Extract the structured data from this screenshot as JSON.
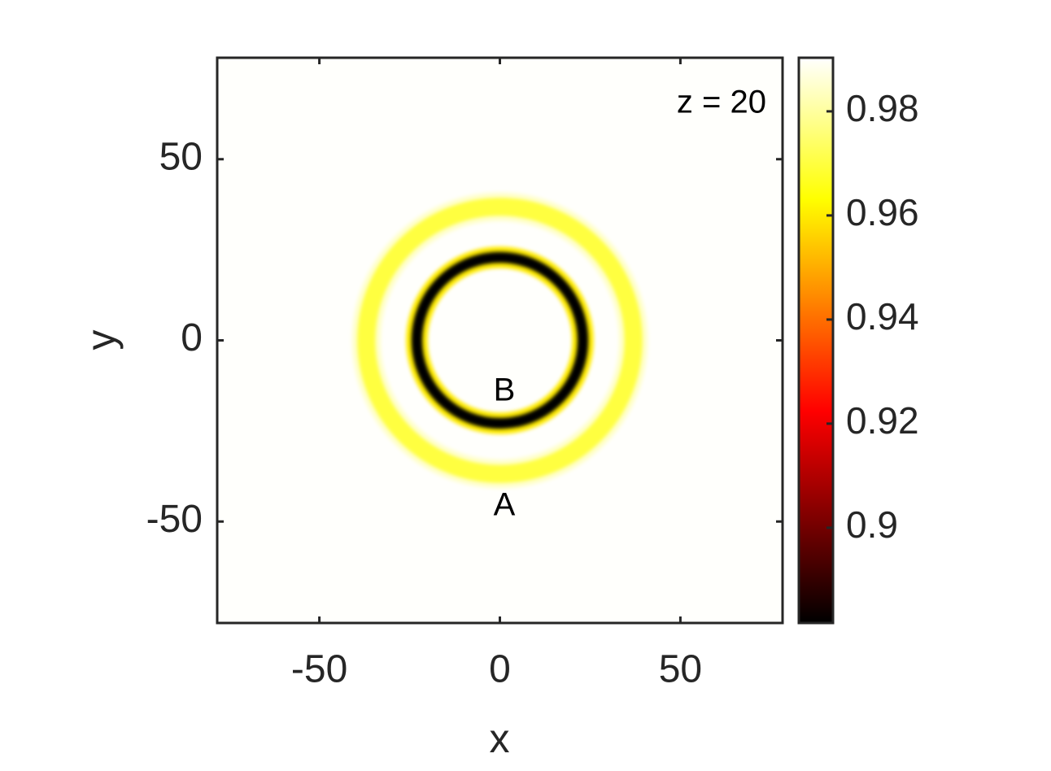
{
  "chart_data": {
    "type": "heatmap",
    "xlabel": "x",
    "ylabel": "y",
    "xlim": [
      -78.3,
      78.3
    ],
    "ylim": [
      -78,
      78
    ],
    "xticks": [
      -50,
      0,
      50
    ],
    "yticks": [
      -50,
      0,
      50
    ],
    "colormap": "hot",
    "clim": [
      0.8817,
      0.9903
    ],
    "cticks": [
      0.9,
      0.92,
      0.94,
      0.96,
      0.98
    ],
    "background": 0.99,
    "rings": [
      {
        "radius": 37,
        "width": 8,
        "value": 0.985
      },
      {
        "radius": 37,
        "width": 5,
        "value": 0.97
      },
      {
        "radius": 23,
        "width": 6,
        "value": 0.96
      },
      {
        "radius": 23,
        "width": 3,
        "value": 0.882
      }
    ],
    "annotations": [
      "z = 20",
      "B",
      "A"
    ]
  }
}
